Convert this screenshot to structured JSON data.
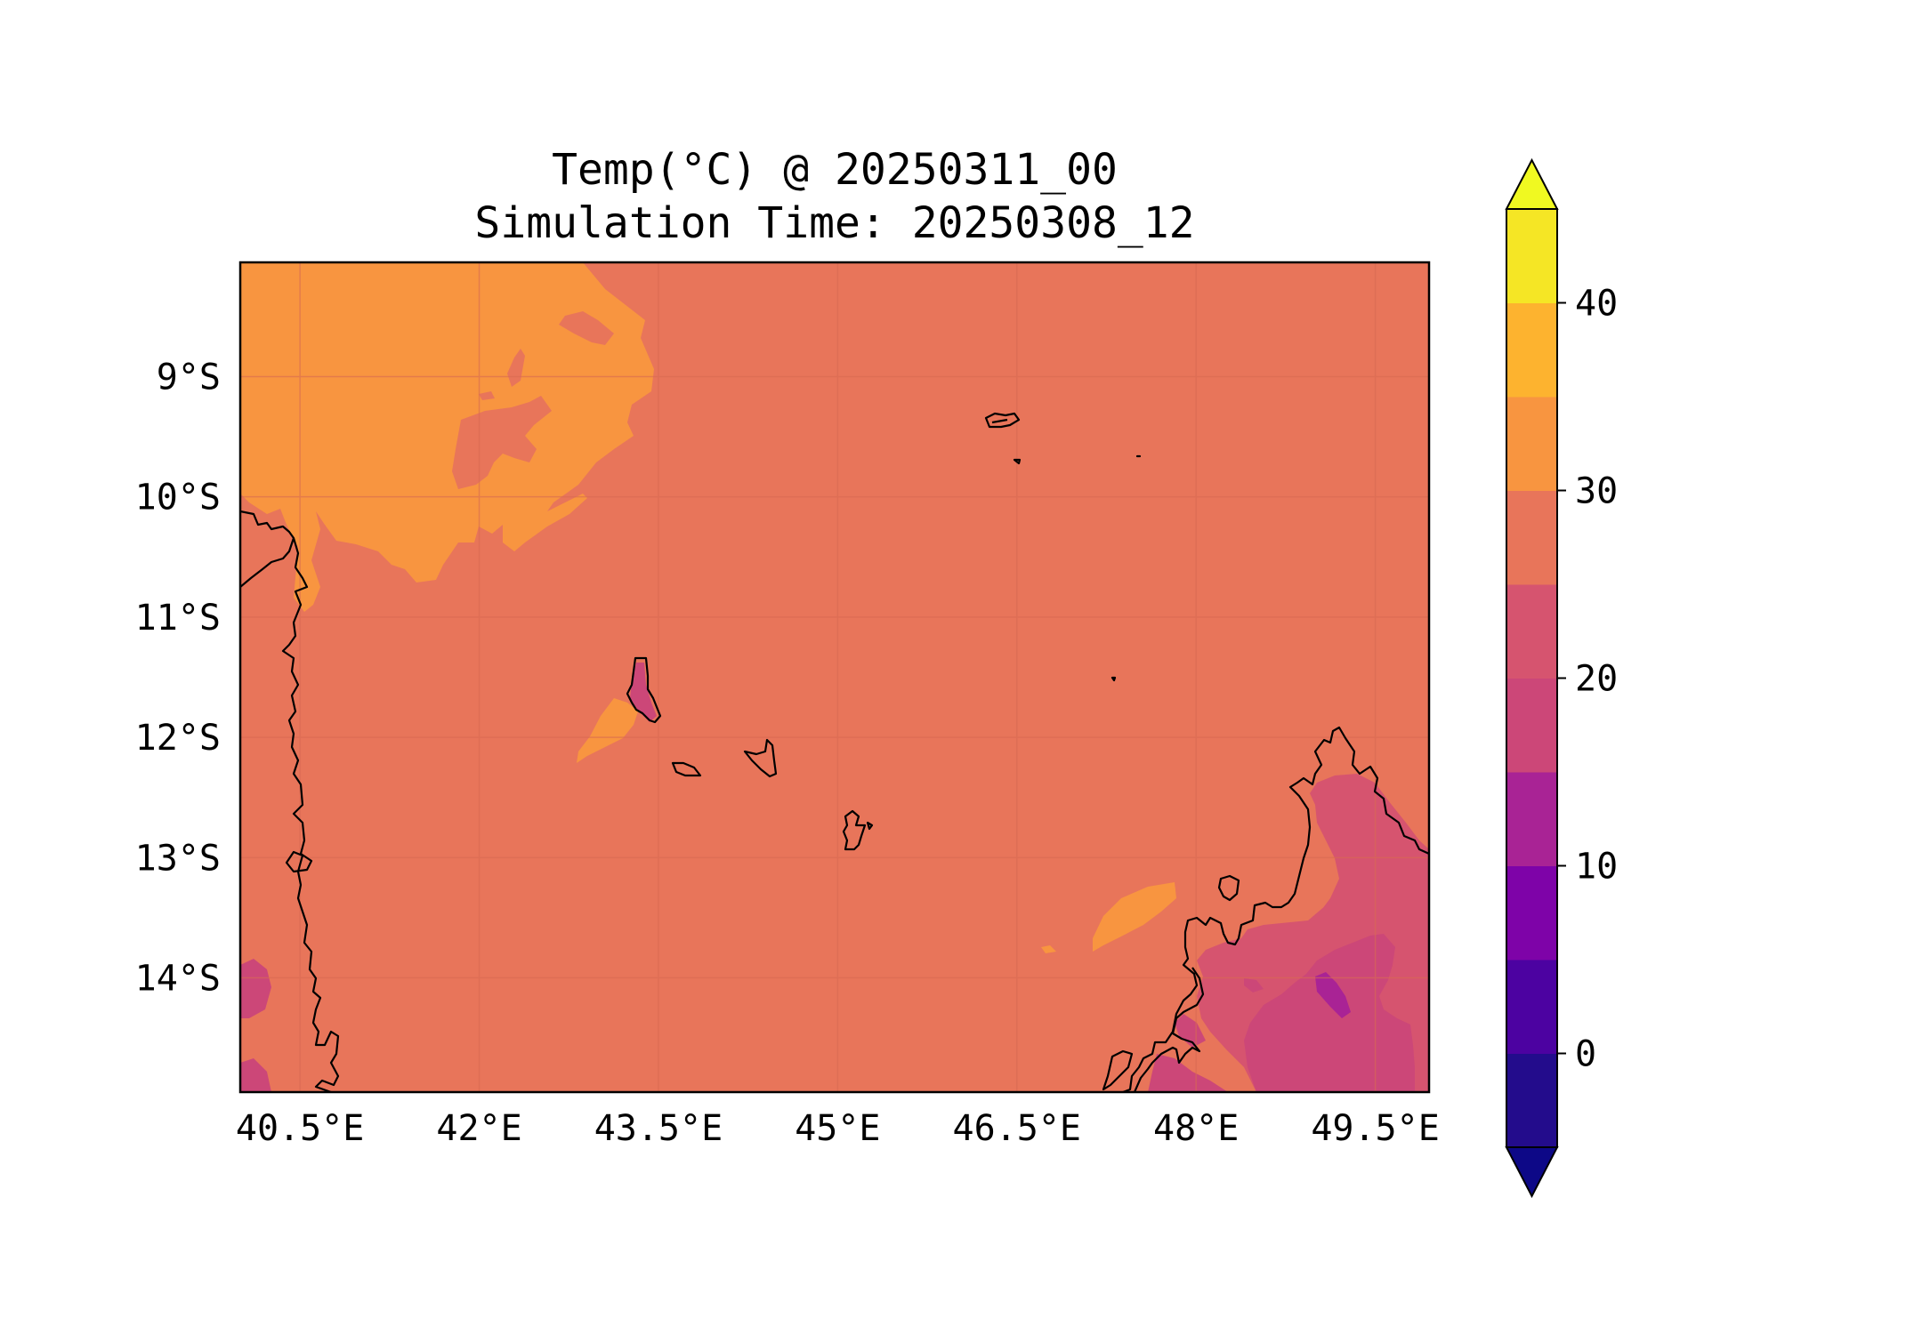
{
  "title": {
    "line1": "Temp(°C) @ 20250311_00",
    "line2": "Simulation Time: 20250308_12"
  },
  "map": {
    "lon_range": [
      40.0,
      49.95
    ],
    "lat_range": [
      -14.95,
      -8.05
    ],
    "x_ticks": [
      {
        "value": 40.5,
        "label": "40.5°E"
      },
      {
        "value": 42.0,
        "label": "42°E"
      },
      {
        "value": 43.5,
        "label": "43.5°E"
      },
      {
        "value": 45.0,
        "label": "45°E"
      },
      {
        "value": 46.5,
        "label": "46.5°E"
      },
      {
        "value": 48.0,
        "label": "48°E"
      },
      {
        "value": 49.5,
        "label": "49.5°E"
      }
    ],
    "y_ticks": [
      {
        "value": -9,
        "label": "9°S"
      },
      {
        "value": -10,
        "label": "10°S"
      },
      {
        "value": -11,
        "label": "11°S"
      },
      {
        "value": -12,
        "label": "12°S"
      },
      {
        "value": -13,
        "label": "13°S"
      },
      {
        "value": -14,
        "label": "14°S"
      }
    ],
    "grid": true,
    "background_level_color": "#e8755a"
  },
  "colorbar": {
    "levels": [
      -5,
      0,
      5,
      10,
      15,
      20,
      25,
      30,
      35,
      40,
      45
    ],
    "colors": [
      "#230c8c",
      "#4c02a1",
      "#7e03a8",
      "#a92395",
      "#cc4778",
      "#d6546f",
      "#e8755a",
      "#f89540",
      "#fdb32f",
      "#f5e625"
    ],
    "under_color": "#0d0887",
    "over_color": "#f0f921",
    "tick_values": [
      0,
      10,
      20,
      30,
      40
    ],
    "tick_labels": [
      "0",
      "10",
      "20",
      "30",
      "40"
    ],
    "extend": "both"
  }
}
